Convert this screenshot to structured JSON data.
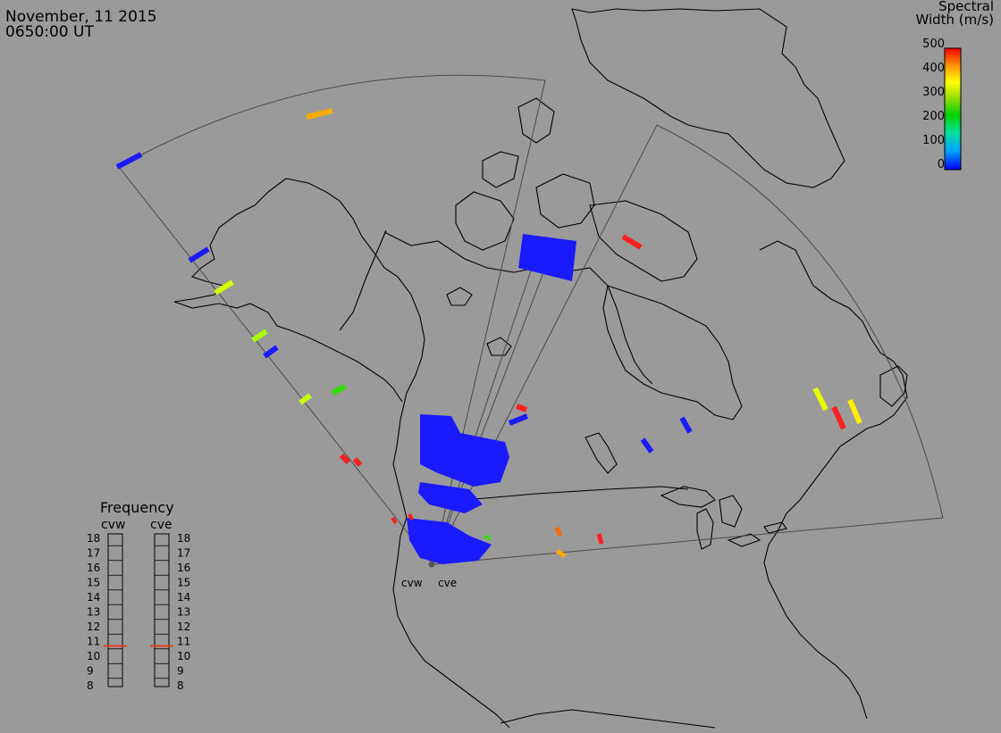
{
  "header": {
    "date": "November, 11 2015",
    "time": "0650:00 UT"
  },
  "colorbar": {
    "title_line1": "Spectral",
    "title_line2": "Width (m/s)",
    "ticks": [
      "500",
      "400",
      "300",
      "200",
      "100",
      "0"
    ]
  },
  "radars": {
    "west_label": "cvw",
    "east_label": "cve"
  },
  "frequency": {
    "title": "Frequency",
    "left_label": "cvw",
    "right_label": "cve",
    "scale": [
      "18",
      "17",
      "16",
      "15",
      "14",
      "13",
      "12",
      "11",
      "10",
      "9",
      "8"
    ],
    "cvw_value": 10.7,
    "cve_value": 10.7
  },
  "colors": {
    "background": "#9a9a9a",
    "land_outline": "#000000",
    "fov_outline": "#4a4a4a",
    "echo_blue": "#1a1aff",
    "marker": "#e0401a"
  }
}
